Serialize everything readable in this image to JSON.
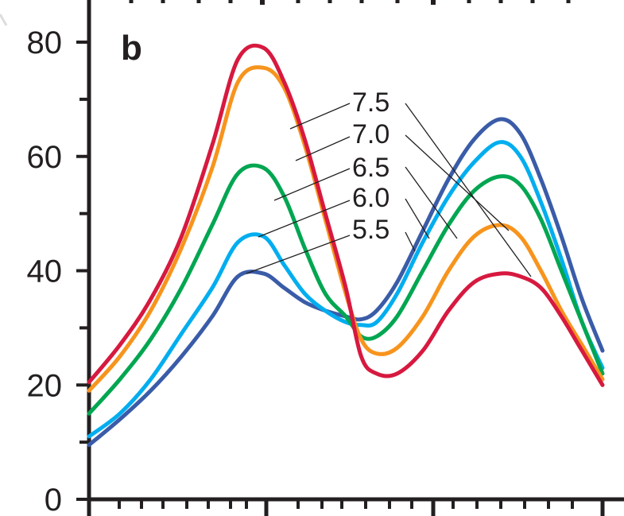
{
  "chart_data": {
    "type": "line",
    "panel_label": "b",
    "ylim": [
      0,
      85
    ],
    "xlim": [
      0,
      1
    ],
    "y_ticks": [
      0,
      20,
      40,
      60,
      80
    ],
    "grid": false,
    "series": [
      {
        "name": "7.5",
        "color": "#d7193f",
        "x": [
          0,
          0.06,
          0.12,
          0.18,
          0.24,
          0.29,
          0.34,
          0.38,
          0.42,
          0.46,
          0.5,
          0.53,
          0.56,
          0.6,
          0.65,
          0.7,
          0.75,
          0.8,
          0.84,
          0.88,
          0.92,
          0.96,
          1
        ],
        "values": [
          20.5,
          27,
          35,
          46,
          62,
          77,
          79,
          73,
          63,
          50,
          37,
          25,
          22,
          22,
          26,
          33,
          38,
          39.5,
          39,
          37,
          32,
          26,
          20
        ]
      },
      {
        "name": "7.0",
        "color": "#f7941d",
        "x": [
          0,
          0.06,
          0.12,
          0.18,
          0.24,
          0.29,
          0.34,
          0.38,
          0.42,
          0.46,
          0.5,
          0.53,
          0.56,
          0.6,
          0.65,
          0.7,
          0.75,
          0.8,
          0.84,
          0.88,
          0.92,
          0.96,
          1
        ],
        "values": [
          19,
          25,
          33,
          44,
          58,
          73,
          75.5,
          72,
          62,
          49,
          36,
          28,
          25.5,
          26.5,
          32,
          40,
          46,
          48,
          46,
          40,
          33,
          27,
          21
        ]
      },
      {
        "name": "6.5",
        "color": "#00a651",
        "x": [
          0,
          0.06,
          0.12,
          0.18,
          0.24,
          0.29,
          0.34,
          0.38,
          0.42,
          0.46,
          0.5,
          0.53,
          0.56,
          0.6,
          0.65,
          0.7,
          0.75,
          0.8,
          0.84,
          0.88,
          0.92,
          0.96,
          1
        ],
        "values": [
          15,
          21,
          28,
          37,
          48,
          57,
          58,
          53,
          44,
          36,
          32,
          28.5,
          28.5,
          32,
          40,
          48,
          54,
          56.5,
          55,
          49,
          40,
          31,
          22
        ]
      },
      {
        "name": "6.0",
        "color": "#00aeef",
        "x": [
          0,
          0.06,
          0.12,
          0.18,
          0.24,
          0.29,
          0.34,
          0.38,
          0.42,
          0.46,
          0.5,
          0.53,
          0.56,
          0.6,
          0.65,
          0.7,
          0.75,
          0.8,
          0.84,
          0.88,
          0.92,
          0.96,
          1
        ],
        "values": [
          11,
          15,
          21,
          29,
          37,
          45,
          46,
          41,
          36,
          33,
          31,
          30.5,
          31,
          36,
          45,
          53,
          59,
          62.5,
          60,
          52,
          42,
          31,
          23
        ]
      },
      {
        "name": "5.5",
        "color": "#3a5ca8",
        "x": [
          0,
          0.06,
          0.12,
          0.18,
          0.24,
          0.29,
          0.34,
          0.38,
          0.42,
          0.46,
          0.5,
          0.53,
          0.56,
          0.6,
          0.65,
          0.7,
          0.75,
          0.8,
          0.84,
          0.88,
          0.92,
          0.96,
          1
        ],
        "values": [
          9.5,
          14,
          19,
          25,
          32,
          39,
          39.5,
          37,
          34.5,
          33,
          32,
          31.5,
          33,
          38,
          47,
          56,
          63,
          66.5,
          64,
          56,
          46,
          35,
          26
        ]
      }
    ]
  }
}
